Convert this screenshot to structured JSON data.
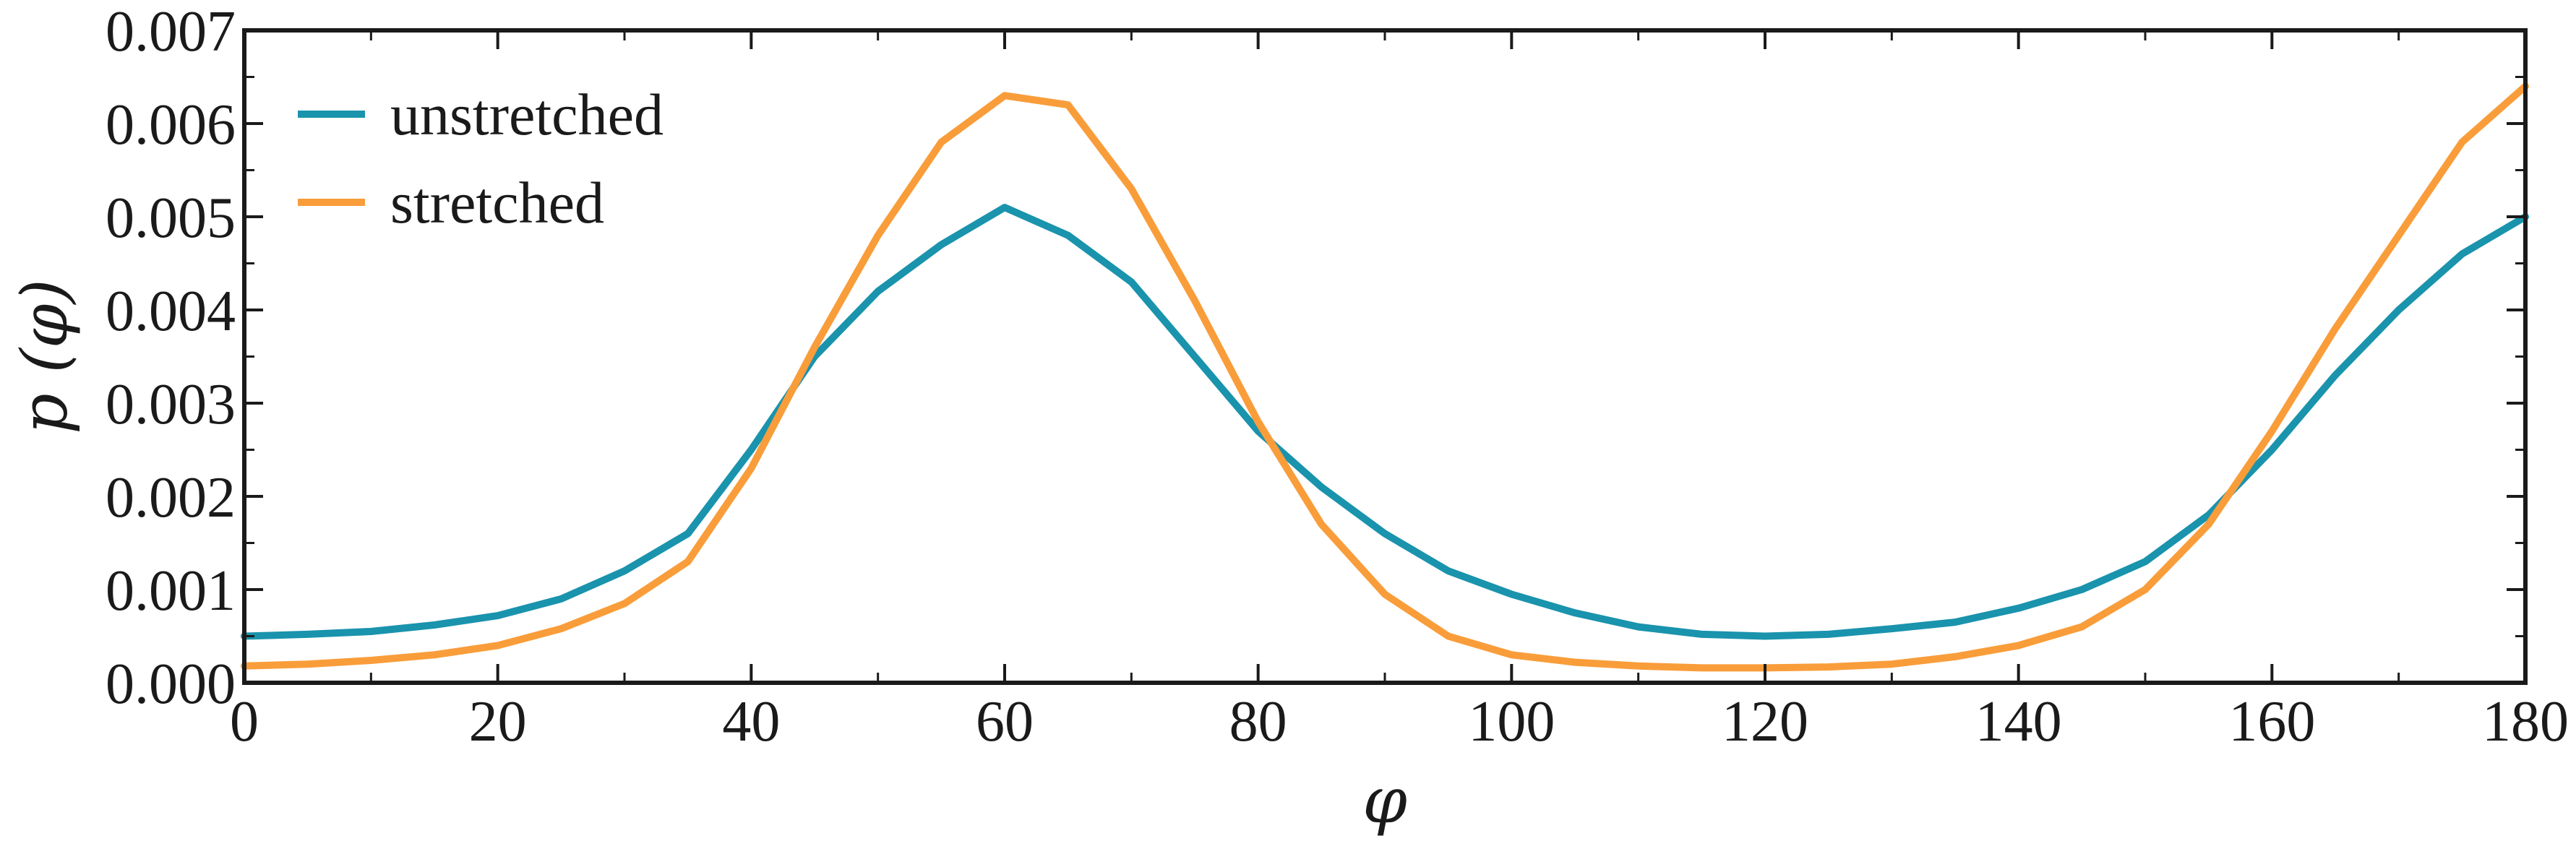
{
  "chart_data": {
    "type": "line",
    "xlabel": "φ",
    "ylabel": "p (φ)",
    "xlim": [
      0,
      180
    ],
    "ylim": [
      0,
      0.007
    ],
    "x_ticks": [
      0,
      20,
      40,
      60,
      80,
      100,
      120,
      140,
      160,
      180
    ],
    "x_tick_labels": [
      "0",
      "20",
      "40",
      "60",
      "80",
      "100",
      "120",
      "140",
      "160",
      "180"
    ],
    "y_ticks": [
      0,
      0.001,
      0.002,
      0.003,
      0.004,
      0.005,
      0.006,
      0.007
    ],
    "y_tick_labels": [
      "0.000",
      "0.001",
      "0.002",
      "0.003",
      "0.004",
      "0.005",
      "0.006",
      "0.007"
    ],
    "grid": false,
    "legend_position": "top-left",
    "x": [
      0,
      5,
      10,
      15,
      20,
      25,
      30,
      35,
      40,
      45,
      50,
      55,
      60,
      65,
      70,
      75,
      80,
      85,
      90,
      95,
      100,
      105,
      110,
      115,
      120,
      125,
      130,
      135,
      140,
      145,
      150,
      155,
      160,
      165,
      170,
      175,
      180
    ],
    "series": [
      {
        "name": "unstretched",
        "color": "#1a93ad",
        "values": [
          0.0005,
          0.00052,
          0.00055,
          0.00062,
          0.00072,
          0.0009,
          0.0012,
          0.0016,
          0.0025,
          0.0035,
          0.0042,
          0.0047,
          0.0051,
          0.0048,
          0.0043,
          0.0035,
          0.0027,
          0.0021,
          0.0016,
          0.0012,
          0.00095,
          0.00075,
          0.0006,
          0.00052,
          0.0005,
          0.00052,
          0.00058,
          0.00065,
          0.0008,
          0.001,
          0.0013,
          0.0018,
          0.0025,
          0.0033,
          0.004,
          0.0046,
          0.005
        ]
      },
      {
        "name": "stretched",
        "color": "#f99d3a",
        "values": [
          0.00018,
          0.0002,
          0.00024,
          0.0003,
          0.0004,
          0.00058,
          0.00085,
          0.0013,
          0.0023,
          0.0036,
          0.0048,
          0.0058,
          0.0063,
          0.0062,
          0.0053,
          0.0041,
          0.0028,
          0.0017,
          0.00095,
          0.0005,
          0.0003,
          0.00022,
          0.00018,
          0.00016,
          0.00016,
          0.00017,
          0.0002,
          0.00028,
          0.0004,
          0.0006,
          0.001,
          0.0017,
          0.0027,
          0.0038,
          0.0048,
          0.0058,
          0.0064
        ]
      }
    ]
  }
}
